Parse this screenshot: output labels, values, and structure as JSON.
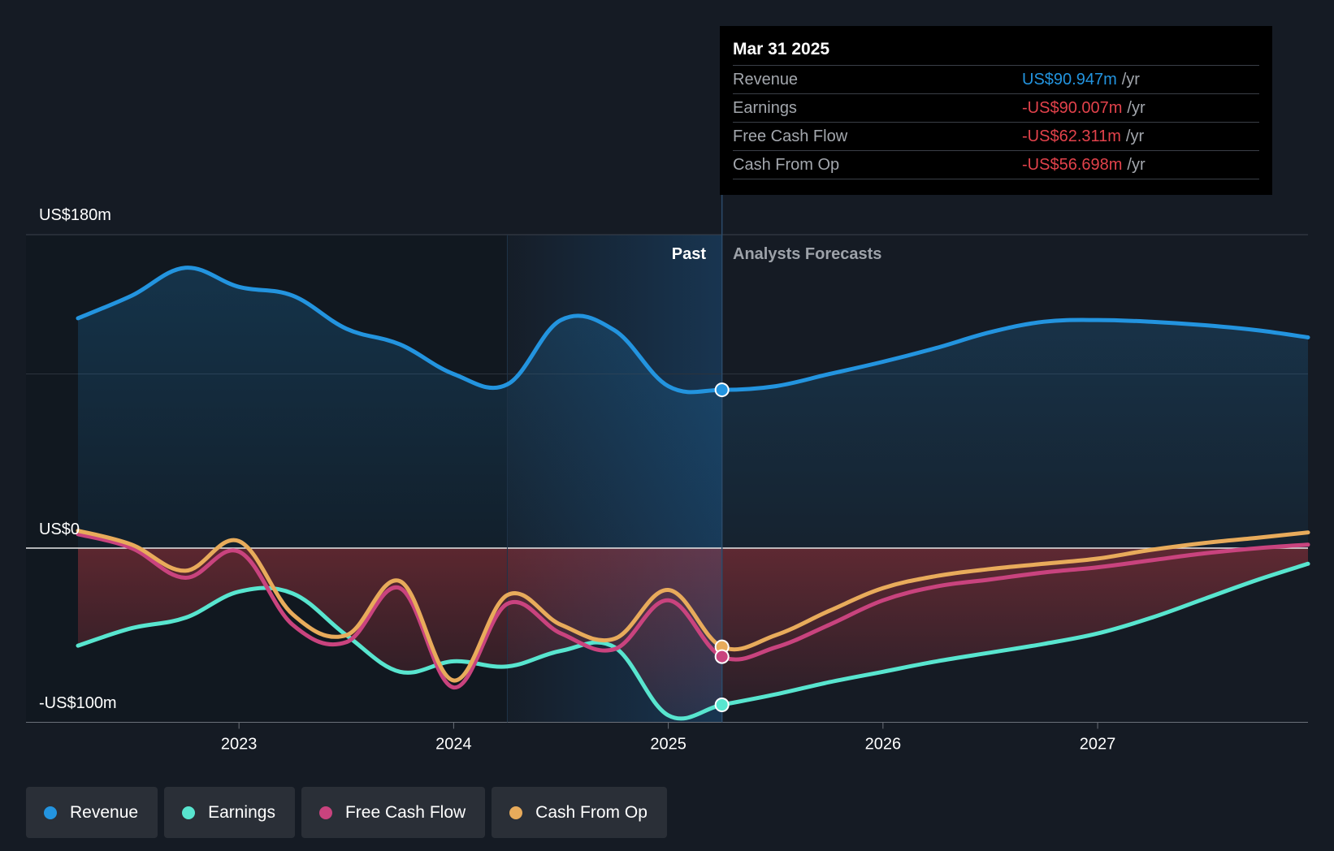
{
  "colors": {
    "background": "#151b24",
    "revenue": "#2394df",
    "earnings": "#58e5cf",
    "free_cash_flow": "#c9437e",
    "cash_from_op": "#e8ab5b",
    "negative": "#e2424b"
  },
  "tooltip": {
    "date": "Mar 31 2025",
    "rows": [
      {
        "label": "Revenue",
        "value": "US$90.947m",
        "unit": "/yr",
        "color": "#2394df"
      },
      {
        "label": "Earnings",
        "value": "-US$90.007m",
        "unit": "/yr",
        "color": "#e2424b"
      },
      {
        "label": "Free Cash Flow",
        "value": "-US$62.311m",
        "unit": "/yr",
        "color": "#e2424b"
      },
      {
        "label": "Cash From Op",
        "value": "-US$56.698m",
        "unit": "/yr",
        "color": "#e2424b"
      }
    ]
  },
  "legend": [
    {
      "label": "Revenue",
      "color": "#2394df"
    },
    {
      "label": "Earnings",
      "color": "#58e5cf"
    },
    {
      "label": "Free Cash Flow",
      "color": "#c9437e"
    },
    {
      "label": "Cash From Op",
      "color": "#e8ab5b"
    }
  ],
  "chart_data": {
    "type": "line",
    "y_labels": {
      "top": "US$180m",
      "zero": "US$0",
      "bottom": "-US$100m"
    },
    "ylim": [
      -100,
      180
    ],
    "xlim": [
      2022.25,
      2027.98
    ],
    "x_ticks": [
      2023,
      2024,
      2025,
      2026,
      2027
    ],
    "x_tick_labels": [
      "2023",
      "2024",
      "2025",
      "2026",
      "2027"
    ],
    "gridlines": [
      180,
      100,
      0
    ],
    "divider_x": 2025.25,
    "period_labels": {
      "past": "Past",
      "forecast": "Analysts Forecasts"
    },
    "highlight_x": 2025.25,
    "series": [
      {
        "name": "Revenue",
        "key": "revenue",
        "points": [
          [
            2022.25,
            132
          ],
          [
            2022.5,
            145
          ],
          [
            2022.75,
            161
          ],
          [
            2023,
            150
          ],
          [
            2023.25,
            145
          ],
          [
            2023.5,
            126
          ],
          [
            2023.75,
            117
          ],
          [
            2024,
            100
          ],
          [
            2024.25,
            94
          ],
          [
            2024.5,
            131
          ],
          [
            2024.75,
            125
          ],
          [
            2025,
            93
          ],
          [
            2025.25,
            90.9
          ],
          [
            2025.5,
            93
          ],
          [
            2025.75,
            100
          ],
          [
            2026,
            107
          ],
          [
            2026.25,
            115
          ],
          [
            2026.5,
            124
          ],
          [
            2026.75,
            130
          ],
          [
            2027,
            131
          ],
          [
            2027.25,
            130
          ],
          [
            2027.5,
            128
          ],
          [
            2027.75,
            125
          ],
          [
            2027.98,
            121
          ]
        ]
      },
      {
        "name": "Earnings",
        "key": "earnings",
        "points": [
          [
            2022.25,
            -56
          ],
          [
            2022.5,
            -46
          ],
          [
            2022.75,
            -40
          ],
          [
            2023,
            -25
          ],
          [
            2023.25,
            -26
          ],
          [
            2023.5,
            -50
          ],
          [
            2023.75,
            -71
          ],
          [
            2024,
            -65
          ],
          [
            2024.25,
            -68
          ],
          [
            2024.5,
            -59
          ],
          [
            2024.75,
            -57
          ],
          [
            2025,
            -96
          ],
          [
            2025.25,
            -90
          ],
          [
            2025.5,
            -84
          ],
          [
            2025.75,
            -77
          ],
          [
            2026,
            -71
          ],
          [
            2026.25,
            -65
          ],
          [
            2026.5,
            -60
          ],
          [
            2026.75,
            -55
          ],
          [
            2027,
            -49
          ],
          [
            2027.25,
            -40
          ],
          [
            2027.5,
            -29
          ],
          [
            2027.75,
            -18
          ],
          [
            2027.98,
            -9
          ]
        ]
      },
      {
        "name": "Free Cash Flow",
        "key": "free_cash_flow",
        "points": [
          [
            2022.25,
            8
          ],
          [
            2022.5,
            0
          ],
          [
            2022.75,
            -17
          ],
          [
            2023,
            -2
          ],
          [
            2023.25,
            -44
          ],
          [
            2023.5,
            -54
          ],
          [
            2023.75,
            -23
          ],
          [
            2024,
            -80
          ],
          [
            2024.25,
            -32
          ],
          [
            2024.5,
            -49
          ],
          [
            2024.75,
            -58
          ],
          [
            2025,
            -30
          ],
          [
            2025.25,
            -62.3
          ],
          [
            2025.5,
            -57
          ],
          [
            2025.75,
            -44
          ],
          [
            2026,
            -30
          ],
          [
            2026.25,
            -22
          ],
          [
            2026.5,
            -18
          ],
          [
            2026.75,
            -14
          ],
          [
            2027,
            -11
          ],
          [
            2027.25,
            -7
          ],
          [
            2027.5,
            -3
          ],
          [
            2027.75,
            0
          ],
          [
            2027.98,
            2
          ]
        ]
      },
      {
        "name": "Cash From Op",
        "key": "cash_from_op",
        "points": [
          [
            2022.25,
            10
          ],
          [
            2022.5,
            2
          ],
          [
            2022.75,
            -13
          ],
          [
            2023,
            4
          ],
          [
            2023.25,
            -38
          ],
          [
            2023.5,
            -50
          ],
          [
            2023.75,
            -19
          ],
          [
            2024,
            -76
          ],
          [
            2024.25,
            -27
          ],
          [
            2024.5,
            -44
          ],
          [
            2024.75,
            -52
          ],
          [
            2025,
            -24
          ],
          [
            2025.25,
            -56.7
          ],
          [
            2025.5,
            -50
          ],
          [
            2025.75,
            -36
          ],
          [
            2026,
            -23
          ],
          [
            2026.25,
            -16
          ],
          [
            2026.5,
            -12
          ],
          [
            2026.75,
            -9
          ],
          [
            2027,
            -6
          ],
          [
            2027.25,
            -1
          ],
          [
            2027.5,
            3
          ],
          [
            2027.75,
            6
          ],
          [
            2027.98,
            9
          ]
        ]
      }
    ]
  }
}
